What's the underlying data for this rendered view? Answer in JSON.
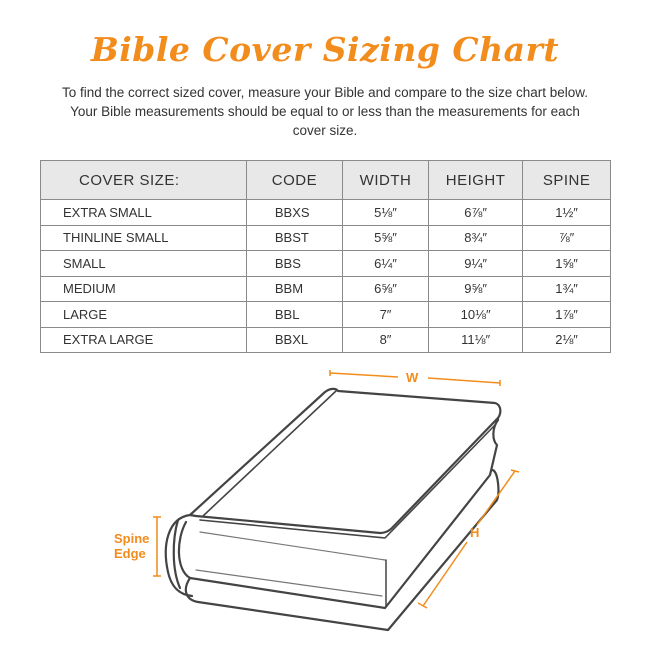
{
  "title": "Bible Cover Sizing Chart",
  "intro": "To find the correct sized cover, measure your Bible and compare to the size chart below. Your Bible measurements should be equal to or less than the measurements for each cover size.",
  "table": {
    "headers": [
      "COVER SIZE:",
      "CODE",
      "WIDTH",
      "HEIGHT",
      "SPINE"
    ],
    "rows": [
      [
        "EXTRA SMALL",
        "BBXS",
        "5⅛″",
        "6⅞″",
        "1½″"
      ],
      [
        "THINLINE SMALL",
        "BBST",
        "5⅝″",
        "8¾″",
        "⅞″"
      ],
      [
        "SMALL",
        "BBS",
        "6¼″",
        "9¼″",
        "1⅝″"
      ],
      [
        "MEDIUM",
        "BBM",
        "6⅝″",
        "9⅝″",
        "1¾″"
      ],
      [
        "LARGE",
        "BBL",
        "7″",
        "10⅛″",
        "1⅞″"
      ],
      [
        "EXTRA LARGE",
        "BBXL",
        "8″",
        "11⅛″",
        "2⅛″"
      ]
    ]
  },
  "diagram": {
    "width_label": "W",
    "height_label": "H",
    "spine_label_1": "Spine",
    "spine_label_2": "Edge"
  },
  "colors": {
    "accent": "#f28c1c",
    "header_bg": "#e8e8e8",
    "line": "#444444"
  }
}
